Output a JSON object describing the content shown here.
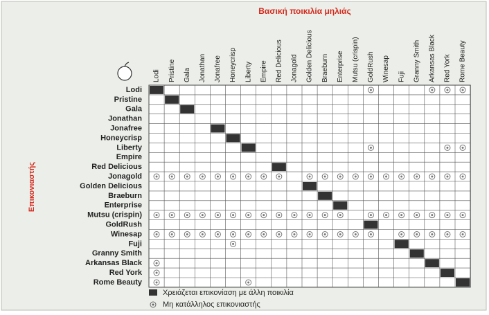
{
  "title": "Βασική ποικιλία μηλιάς",
  "side_label": "Επικονιαστής",
  "columns": [
    "Lodi",
    "Pristine",
    "Gala",
    "Jonathan",
    "Jonafree",
    "Honeycrisp",
    "Liberty",
    "Empire",
    "Red Delicious",
    "Jonagold",
    "Golden Delicious",
    "Braeburn",
    "Enterprise",
    "Mutsu (crispin)",
    "GoldRush",
    "Winesap",
    "Fuji",
    "Granny Smith",
    "Arkansas Black",
    "Red York",
    "Rome Beauty"
  ],
  "rows": [
    {
      "label": "Lodi",
      "needs_other": true,
      "unsuitable": [
        "GoldRush",
        "Arkansas Black",
        "Red York",
        "Rome Beauty"
      ]
    },
    {
      "label": "Pristine",
      "needs_other": true,
      "unsuitable": []
    },
    {
      "label": "Gala",
      "needs_other": true,
      "unsuitable": []
    },
    {
      "label": "Jonathan",
      "needs_other": false,
      "unsuitable": []
    },
    {
      "label": "Jonafree",
      "needs_other": true,
      "unsuitable": []
    },
    {
      "label": "Honeycrisp",
      "needs_other": true,
      "unsuitable": []
    },
    {
      "label": "Liberty",
      "needs_other": true,
      "unsuitable": [
        "GoldRush",
        "Red York",
        "Rome Beauty"
      ]
    },
    {
      "label": "Empire",
      "needs_other": false,
      "unsuitable": []
    },
    {
      "label": "Red Delicious",
      "needs_other": true,
      "unsuitable": []
    },
    {
      "label": "Jonagold",
      "needs_other": false,
      "unsuitable": [
        "Lodi",
        "Pristine",
        "Gala",
        "Jonathan",
        "Jonafree",
        "Honeycrisp",
        "Liberty",
        "Empire",
        "Red Delicious",
        "Golden Delicious",
        "Braeburn",
        "Enterprise",
        "Mutsu (crispin)",
        "GoldRush",
        "Winesap",
        "Fuji",
        "Granny Smith",
        "Arkansas Black",
        "Red York",
        "Rome Beauty"
      ]
    },
    {
      "label": "Golden Delicious",
      "needs_other": true,
      "unsuitable": []
    },
    {
      "label": "Braeburn",
      "needs_other": true,
      "unsuitable": []
    },
    {
      "label": "Enterprise",
      "needs_other": true,
      "unsuitable": []
    },
    {
      "label": "Mutsu (crispin)",
      "needs_other": false,
      "unsuitable": [
        "Lodi",
        "Pristine",
        "Gala",
        "Jonathan",
        "Jonafree",
        "Honeycrisp",
        "Liberty",
        "Empire",
        "Red Delicious",
        "Jonagold",
        "Golden Delicious",
        "Braeburn",
        "Enterprise",
        "GoldRush",
        "Winesap",
        "Fuji",
        "Granny Smith",
        "Arkansas Black",
        "Red York",
        "Rome Beauty"
      ]
    },
    {
      "label": "GoldRush",
      "needs_other": true,
      "unsuitable": []
    },
    {
      "label": "Winesap",
      "needs_other": false,
      "unsuitable": [
        "Lodi",
        "Pristine",
        "Gala",
        "Jonathan",
        "Jonafree",
        "Honeycrisp",
        "Liberty",
        "Empire",
        "Red Delicious",
        "Jonagold",
        "Golden Delicious",
        "Braeburn",
        "Enterprise",
        "Mutsu (crispin)",
        "GoldRush",
        "Fuji",
        "Granny Smith",
        "Arkansas Black",
        "Red York",
        "Rome Beauty"
      ]
    },
    {
      "label": "Fuji",
      "needs_other": true,
      "unsuitable": [
        "Honeycrisp"
      ]
    },
    {
      "label": "Granny Smith",
      "needs_other": true,
      "unsuitable": []
    },
    {
      "label": "Arkansas Black",
      "needs_other": true,
      "unsuitable": [
        "Lodi"
      ]
    },
    {
      "label": "Red York",
      "needs_other": true,
      "unsuitable": [
        "Lodi"
      ]
    },
    {
      "label": "Rome Beauty",
      "needs_other": true,
      "unsuitable": [
        "Lodi",
        "Liberty"
      ]
    }
  ],
  "legend": {
    "needs_other": "Χρειάζεται επικονίαση με άλλη ποικιλία",
    "unsuitable": "Μη κατάλληλος επικονιαστής"
  }
}
